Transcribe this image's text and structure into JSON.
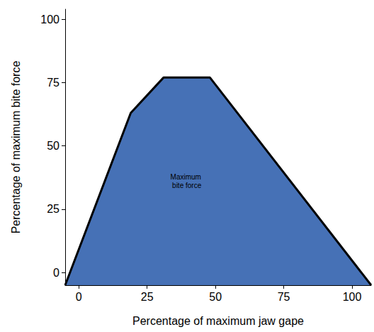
{
  "chart_data": {
    "type": "area",
    "x": [
      -5,
      19,
      31,
      48,
      107
    ],
    "values": [
      -5,
      63,
      77,
      77,
      -5
    ],
    "color": "#4671b6",
    "x_label": "Percentage of maximum jaw gape",
    "y_label": "Percentage of maximum bite force",
    "xlim": [
      -5,
      107
    ],
    "ylim": [
      -5,
      104
    ],
    "xticks": [
      0,
      25,
      50,
      75,
      100
    ],
    "yticks": [
      0,
      25,
      50,
      75,
      100
    ],
    "grid": false,
    "highlight": {
      "label": "Maximum bite force",
      "x": [
        31,
        48
      ],
      "y": [
        -5,
        77
      ],
      "color": "#ababab"
    }
  }
}
